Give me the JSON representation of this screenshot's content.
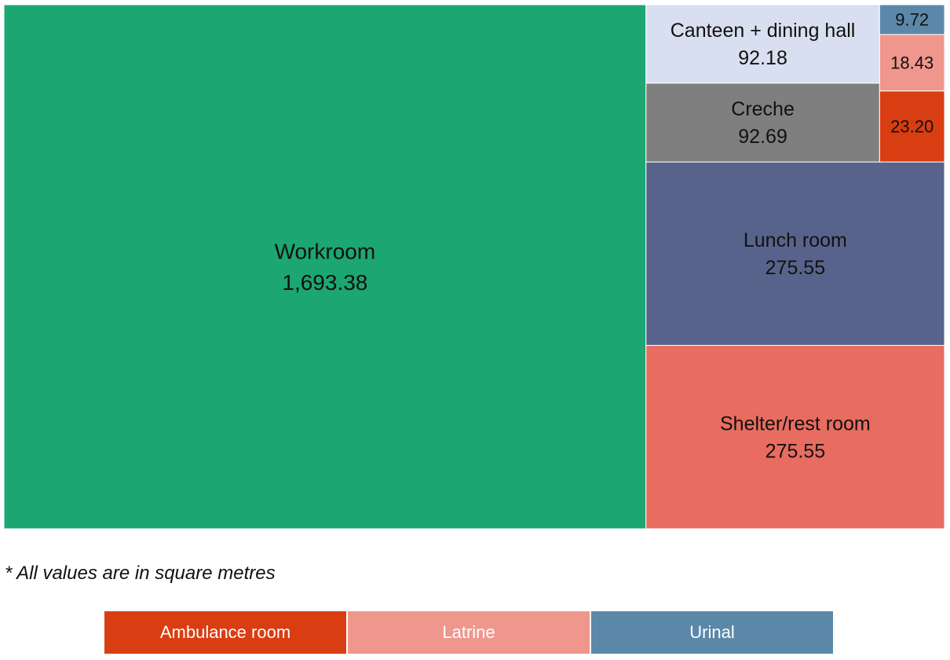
{
  "chart_data": {
    "type": "treemap",
    "title": "",
    "unit_note": "* All values are in square metres",
    "items": [
      {
        "label": "Workroom",
        "value_text": "1,693.38",
        "value": 1693.38,
        "color": "#1ca672",
        "text_color": "#111111"
      },
      {
        "label": "Shelter/rest room",
        "value_text": "275.55",
        "value": 275.55,
        "color": "#e86c60",
        "text_color": "#111111"
      },
      {
        "label": "Lunch room",
        "value_text": "275.55",
        "value": 275.55,
        "color": "#58638b",
        "text_color": "#111111"
      },
      {
        "label": "Creche",
        "value_text": "92.69",
        "value": 92.69,
        "color": "#7f7f7f",
        "text_color": "#111111"
      },
      {
        "label": "Canteen + dining hall",
        "value_text": "92.18",
        "value": 92.18,
        "color": "#d8dff0",
        "text_color": "#111111"
      },
      {
        "label": "Ambulance room",
        "value_text": "23.20",
        "value": 23.2,
        "color": "#d93d12",
        "text_color": "#111111",
        "show_label": false
      },
      {
        "label": "Latrine",
        "value_text": "18.43",
        "value": 18.43,
        "color": "#ef978d",
        "text_color": "#111111",
        "show_label": false
      },
      {
        "label": "Urinal",
        "value_text": "9.72",
        "value": 9.72,
        "color": "#5b88a8",
        "text_color": "#111111",
        "show_label": false
      }
    ],
    "legend": [
      {
        "label": "Ambulance room",
        "color": "#d93d12"
      },
      {
        "label": "Latrine",
        "color": "#ef978d"
      },
      {
        "label": "Urinal",
        "color": "#5b88a8"
      }
    ]
  }
}
